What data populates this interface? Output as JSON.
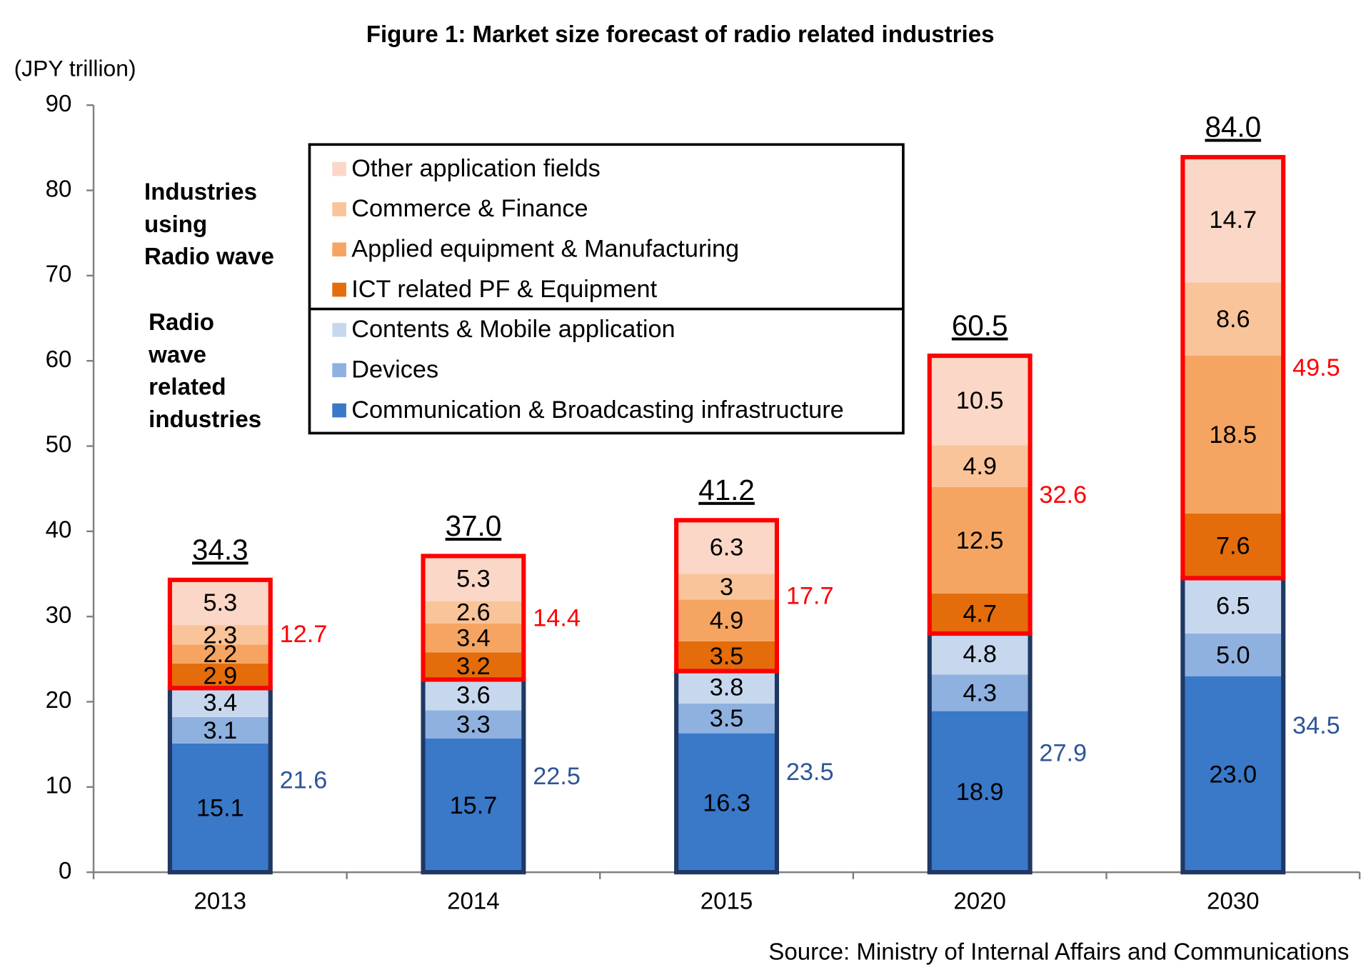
{
  "chart_data": {
    "type": "stacked_bar",
    "title": "Figure 1: Market size forecast of radio related industries",
    "y_label": "(JPY trillion)",
    "source": "Source: Ministry of Internal Affairs and Communications",
    "categories": [
      "2013",
      "2014",
      "2015",
      "2020",
      "2030"
    ],
    "ylim": [
      0,
      90
    ],
    "yticks": [
      0,
      10,
      20,
      30,
      40,
      50,
      60,
      70,
      80,
      90
    ],
    "groups": [
      {
        "label_lines": [
          "Radio",
          "wave",
          "related",
          "industries"
        ],
        "color": "#1f3864",
        "label_color": "#2f5597",
        "values": [
          21.6,
          22.5,
          23.5,
          27.9,
          34.5
        ],
        "series": [
          {
            "name": "Communication & Broadcasting infrastructure",
            "color": "#3a78c8",
            "values": [
              15.1,
              15.7,
              16.3,
              18.9,
              23.0
            ],
            "value_labels": [
              "15.1",
              "15.7",
              "16.3",
              "18.9",
              "23.0"
            ]
          },
          {
            "name": "Devices",
            "color": "#8eb1e0",
            "values": [
              3.1,
              3.3,
              3.5,
              4.3,
              5.0
            ],
            "value_labels": [
              "3.1",
              "3.3",
              "3.5",
              "4.3",
              "5.0"
            ]
          },
          {
            "name": "Contents & Mobile application",
            "color": "#c7d8ee",
            "values": [
              3.4,
              3.6,
              3.8,
              4.8,
              6.5
            ]
          }
        ]
      },
      {
        "label_lines": [
          "Industries",
          "using",
          "Radio wave"
        ],
        "color": "#ff0000",
        "label_color": "#ff0000",
        "values": [
          12.7,
          14.4,
          17.7,
          32.6,
          49.5
        ],
        "series": [
          {
            "name": "ICT related PF & Equipment",
            "color": "#e46c0a",
            "values": [
              2.9,
              3.2,
              3.5,
              4.7,
              7.6
            ]
          },
          {
            "name": "Applied equipment & Manufacturing",
            "color": "#f5a561",
            "values": [
              2.2,
              3.4,
              4.9,
              12.5,
              18.5
            ]
          },
          {
            "name": "Commerce & Finance",
            "color": "#f9c49a",
            "values": [
              2.3,
              2.6,
              3.0,
              4.9,
              8.6
            ]
          },
          {
            "name": "Other application fields",
            "color": "#fad7c7",
            "values": [
              5.3,
              5.3,
              6.3,
              10.5,
              14.7
            ]
          }
        ]
      }
    ],
    "totals": {
      "values": [
        34.3,
        37.0,
        41.2,
        60.5,
        84.0
      ],
      "value_labels": [
        "34.3",
        "37.0",
        "41.2",
        "60.5",
        "84.0"
      ]
    }
  }
}
